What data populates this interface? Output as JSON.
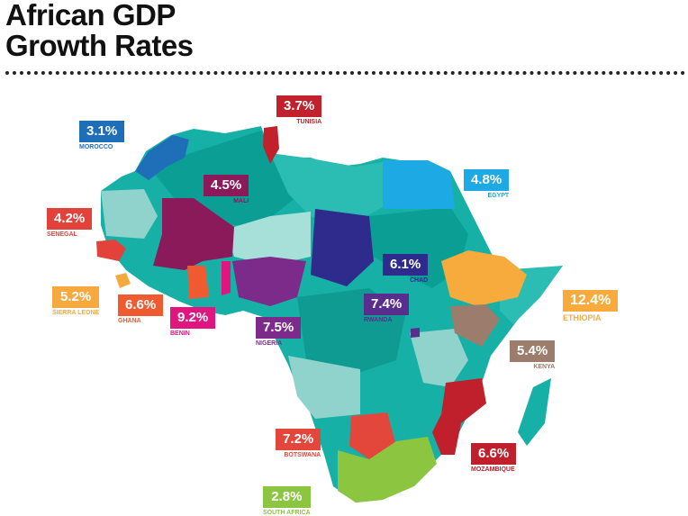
{
  "title_line1": "African GDP",
  "title_line2": "Growth Rates",
  "countries": [
    {
      "key": "morocco",
      "name": "MOROCCO",
      "value": "3.1%",
      "color": "#1f6fb8"
    },
    {
      "key": "tunisia",
      "name": "TUNISIA",
      "value": "3.7%",
      "color": "#c0212c"
    },
    {
      "key": "mali",
      "name": "MALI",
      "value": "4.5%",
      "color": "#8b1a5a"
    },
    {
      "key": "egypt",
      "name": "EGYPT",
      "value": "4.8%",
      "color": "#1da9e4"
    },
    {
      "key": "senegal",
      "name": "SENEGAL",
      "value": "4.2%",
      "color": "#e2423a"
    },
    {
      "key": "chad",
      "name": "CHAD",
      "value": "6.1%",
      "color": "#2e2b8c"
    },
    {
      "key": "sierra_leone",
      "name": "SIERRA LEONE",
      "value": "5.2%",
      "color": "#f5a93e"
    },
    {
      "key": "ghana",
      "name": "GHANA",
      "value": "6.6%",
      "color": "#ef5a30"
    },
    {
      "key": "benin",
      "name": "BENIN",
      "value": "9.2%",
      "color": "#e0157f"
    },
    {
      "key": "nigeria",
      "name": "NIGERIA",
      "value": "7.5%",
      "color": "#7d2b8b"
    },
    {
      "key": "rwanda",
      "name": "RWANDA",
      "value": "7.4%",
      "color": "#5a2e8f"
    },
    {
      "key": "ethiopia",
      "name": "ETHIOPIA",
      "value": "12.4%",
      "color": "#f6ab3c"
    },
    {
      "key": "kenya",
      "name": "KENYA",
      "value": "5.4%",
      "color": "#9c7c6c"
    },
    {
      "key": "botswana",
      "name": "BOTSWANA",
      "value": "7.2%",
      "color": "#e3473c"
    },
    {
      "key": "mozambique",
      "name": "MOZAMBIQUE",
      "value": "6.6%",
      "color": "#c0202c"
    },
    {
      "key": "south_africa",
      "name": "SOUTH AFRICA",
      "value": "2.8%",
      "color": "#8cc641"
    }
  ]
}
